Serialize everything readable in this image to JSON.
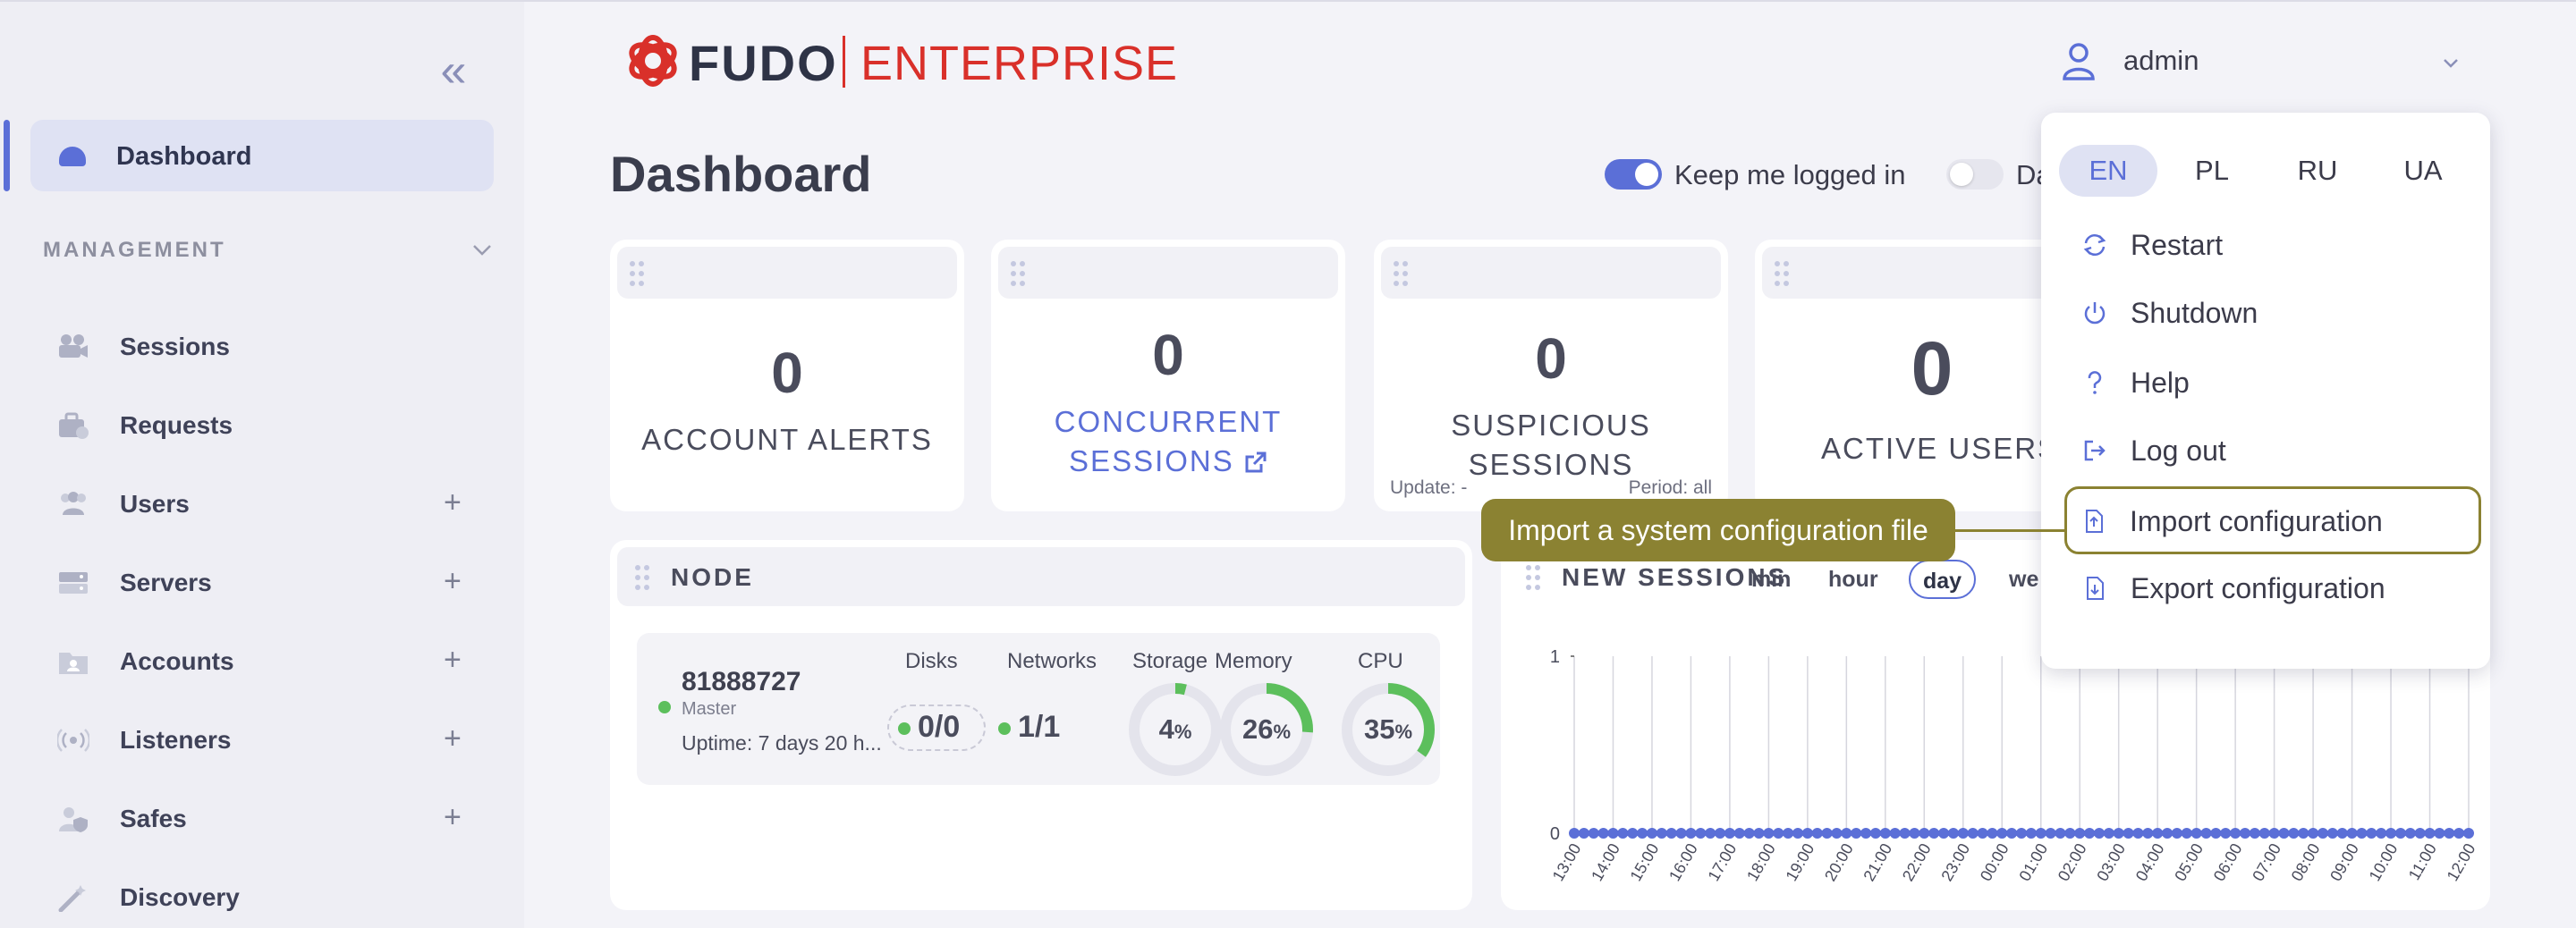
{
  "brand": {
    "name": "FUDO",
    "product": "ENTERPRISE",
    "accent": "#5b6fd7",
    "brand_red": "#d9302a"
  },
  "header": {
    "user": "admin"
  },
  "sidebar": {
    "active": "Dashboard",
    "section": "MANAGEMENT",
    "items": [
      {
        "label": "Sessions",
        "icon": "video-camera-icon",
        "plus": false
      },
      {
        "label": "Requests",
        "icon": "briefcase-icon",
        "plus": false
      },
      {
        "label": "Users",
        "icon": "users-icon",
        "plus": true
      },
      {
        "label": "Servers",
        "icon": "server-icon",
        "plus": true
      },
      {
        "label": "Accounts",
        "icon": "account-folder-icon",
        "plus": true
      },
      {
        "label": "Listeners",
        "icon": "broadcast-icon",
        "plus": true
      },
      {
        "label": "Safes",
        "icon": "user-shield-icon",
        "plus": true
      },
      {
        "label": "Discovery",
        "icon": "magic-wand-icon",
        "plus": false
      }
    ],
    "plus_symbol": "+"
  },
  "page": {
    "title": "Dashboard",
    "keep_logged_in": "Keep me logged in",
    "second_toggle": "Da"
  },
  "cards": [
    {
      "value": "0",
      "title": "ACCOUNT ALERTS"
    },
    {
      "value": "0",
      "title_line1": "CONCURRENT",
      "title_line2": "SESSIONS"
    },
    {
      "value": "0",
      "title_line1": "SUSPICIOUS",
      "title_line2": "SESSIONS",
      "update": "Update: -",
      "period": "Period: all"
    },
    {
      "value": "0",
      "title": "ACTIVE USERS"
    }
  ],
  "node": {
    "title": "NODE",
    "id": "81888727",
    "role": "Master",
    "uptime": "Uptime: 7 days 20 h...",
    "disks_label": "Disks",
    "disks": "0/0",
    "networks_label": "Networks",
    "networks": "1/1",
    "storage_label": "Storage",
    "storage": {
      "num": "4",
      "pct": 4
    },
    "memory_label": "Memory",
    "memory": {
      "num": "26",
      "pct": 26
    },
    "cpu_label": "CPU",
    "cpu": {
      "num": "35",
      "pct": 35
    },
    "percent_sign": "%"
  },
  "sessions_panel": {
    "title": "NEW SESSIONS",
    "tabs": [
      "min",
      "hour",
      "day",
      "we"
    ],
    "active_tab": "day"
  },
  "chart_data": {
    "type": "line",
    "title": "NEW SESSIONS",
    "x": [
      "13:00",
      "14:00",
      "15:00",
      "16:00",
      "17:00",
      "18:00",
      "19:00",
      "20:00",
      "21:00",
      "22:00",
      "23:00",
      "00:00",
      "01:00",
      "02:00",
      "03:00",
      "04:00",
      "05:00",
      "06:00",
      "07:00",
      "08:00",
      "09:00",
      "10:00",
      "11:00",
      "12:00"
    ],
    "series": [
      {
        "values": [
          0,
          0,
          0,
          0,
          0,
          0,
          0,
          0,
          0,
          0,
          0,
          0,
          0,
          0,
          0,
          0,
          0,
          0,
          0,
          0,
          0,
          0,
          0,
          0
        ]
      }
    ],
    "yticks": [
      "1",
      "0"
    ],
    "ylim": [
      0,
      1
    ],
    "grid": true,
    "color": "#5b6fd7"
  },
  "menu": {
    "languages": [
      "EN",
      "PL",
      "RU",
      "UA"
    ],
    "active_language": "EN",
    "items": [
      {
        "label": "Restart",
        "icon": "restart-icon"
      },
      {
        "label": "Shutdown",
        "icon": "power-icon"
      },
      {
        "label": "Help",
        "icon": "help-icon"
      },
      {
        "label": "Log out",
        "icon": "logout-icon"
      },
      {
        "label": "Import configuration",
        "icon": "file-import-icon"
      },
      {
        "label": "Export configuration",
        "icon": "file-export-icon"
      }
    ]
  },
  "tooltip": {
    "text": "Import a system configuration file",
    "color": "#8b8232"
  }
}
